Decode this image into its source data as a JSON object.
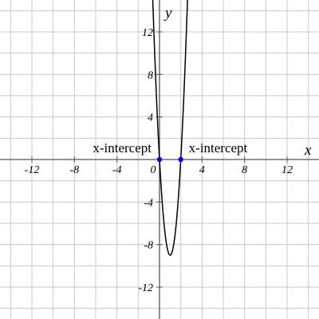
{
  "chart_data": {
    "type": "function",
    "coefficients": [
      9,
      -18,
      0
    ],
    "xlim": [
      -15,
      15
    ],
    "ylim": [
      -15,
      15
    ],
    "xticks": [
      -12,
      -8,
      -4,
      0,
      4,
      8,
      12
    ],
    "yticks": [
      -12,
      -8,
      -4,
      4,
      8,
      12
    ],
    "gridticks": [
      -14,
      -12,
      -10,
      -8,
      -6,
      -4,
      -2,
      0,
      2,
      4,
      6,
      8,
      10,
      12,
      14
    ],
    "grid": true,
    "xlabel": "x",
    "ylabel": "y",
    "color": "#000000",
    "points": [
      {
        "x": 0,
        "y": 0,
        "label": "x-intercept",
        "color": "#0000ff"
      },
      {
        "x": 2,
        "y": 0,
        "label": "x-intercept",
        "color": "#0000ff"
      }
    ]
  }
}
